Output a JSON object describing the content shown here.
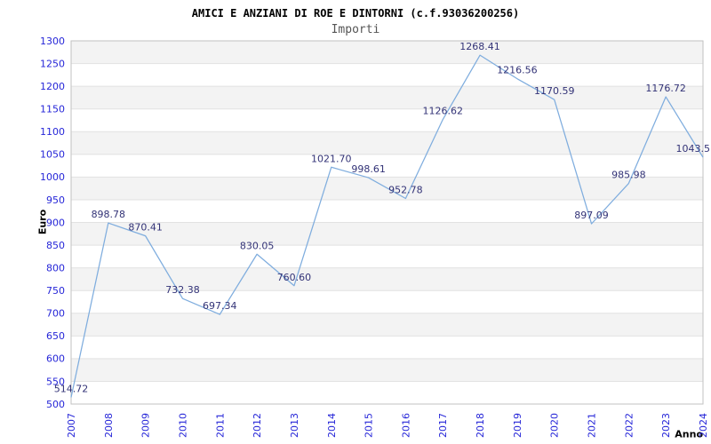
{
  "header": {
    "title": "AMICI E ANZIANI DI ROE E DINTORNI (c.f.93036200256)",
    "subtitle": "Importi"
  },
  "chart_data": {
    "type": "line",
    "title": "AMICI E ANZIANI DI ROE E DINTORNI (c.f.93036200256)",
    "subtitle": "Importi",
    "xlabel": "Anno",
    "ylabel": "Euro",
    "x": [
      "2007",
      "2008",
      "2009",
      "2010",
      "2011",
      "2012",
      "2013",
      "2014",
      "2015",
      "2016",
      "2017",
      "2018",
      "2019",
      "2020",
      "2021",
      "2022",
      "2023",
      "2024"
    ],
    "values": [
      514.72,
      898.78,
      870.41,
      732.38,
      697.34,
      830.05,
      760.6,
      1021.7,
      998.61,
      952.78,
      1126.62,
      1268.41,
      1216.56,
      1170.59,
      897.09,
      985.98,
      1176.72,
      1043.5
    ],
    "point_labels": [
      "514.72",
      "898.78",
      "870.41",
      "732.38",
      "697.34",
      "830.05",
      "760.60",
      "1021.70",
      "998.61",
      "952.78",
      "1126.62",
      "1268.41",
      "1216.56",
      "1170.59",
      "897.09",
      "985.98",
      "1176.72",
      "1043.5"
    ],
    "ylim": [
      500,
      1300
    ],
    "ytick_step": 50,
    "legend": "none",
    "grid": "horizontal-bands",
    "colors": {
      "line": "#7fadde",
      "axis_tick_label": "#2626d8",
      "point_label": "#333377",
      "band_fill": "#f3f3f3",
      "grid_line": "#e2e2e2",
      "plot_border": "#c2c2c2",
      "title": "#000000",
      "subtitle": "#555555",
      "axis_title": "#000000",
      "background": "#ffffff"
    }
  }
}
